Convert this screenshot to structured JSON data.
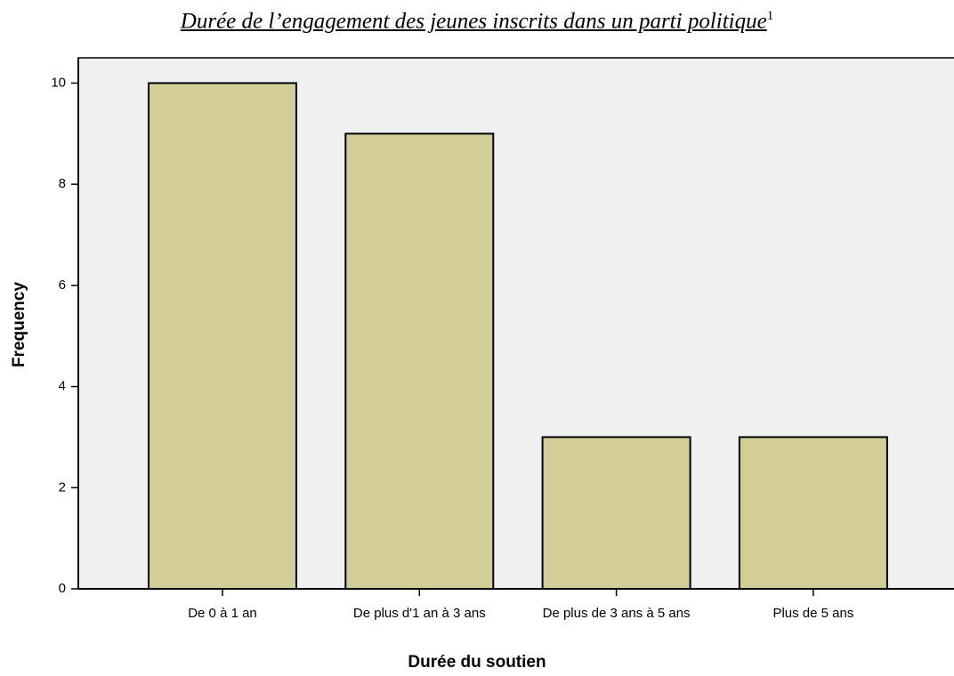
{
  "chart_data": {
    "type": "bar",
    "title": "Durée de l’engagement des jeunes inscrits dans un parti politique",
    "title_footnote": "1",
    "x_label": "Durée du soutien",
    "y_label": "Frequency",
    "categories": [
      "De 0 à 1 an",
      "De plus d'1 an à 3 ans",
      "De plus de 3 ans à 5 ans",
      "Plus de 5 ans"
    ],
    "values": [
      10,
      9,
      3,
      3
    ],
    "color": "#d3ce97",
    "ylim": [
      0,
      10.5
    ],
    "yticks": [
      0,
      2,
      4,
      6,
      8,
      10
    ],
    "grid": false
  }
}
